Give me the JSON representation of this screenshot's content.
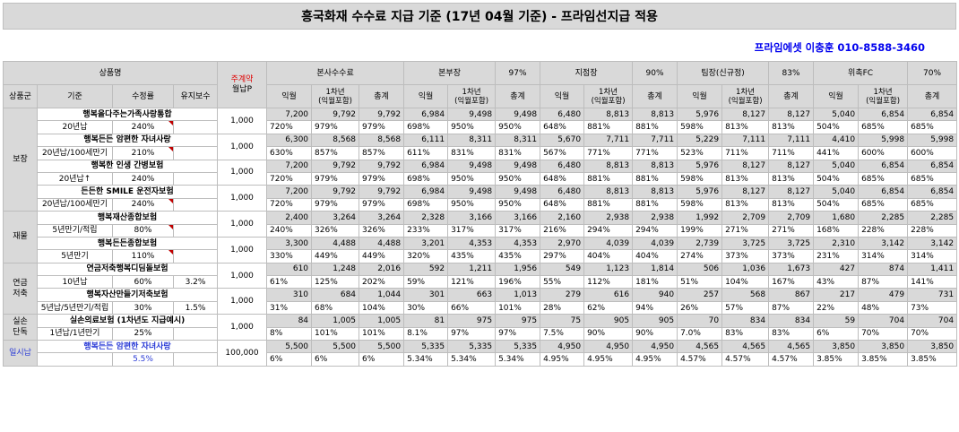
{
  "title": "흥국화재 수수료 지급 기준 (17년 04월 기준) - 프라임선지급 적용",
  "contact": "프라임에셋 이충훈 010-8588-3460",
  "header": {
    "product_name": "상품명",
    "monthly_premium_top": "주계약",
    "monthly_premium_bottom": "월납P",
    "group_col": "상품군",
    "basis_col": "기준",
    "rate_col": "수정률",
    "maint_col": "유지보수",
    "groups": [
      {
        "label": "본사수수료",
        "pct": ""
      },
      {
        "label": "본부장",
        "pct": "97%"
      },
      {
        "label": "지점장",
        "pct": "90%"
      },
      {
        "label": "팀장(신규정)",
        "pct": "83%"
      },
      {
        "label": "위촉FC",
        "pct": "70%"
      }
    ],
    "sub1": "익월",
    "sub2a": "1차년",
    "sub2b": "(익월포함)",
    "sub3": "총계"
  },
  "categories": [
    "보장",
    "재물",
    "연금\n저축",
    "실손\n단독",
    "일시납"
  ],
  "products": [
    {
      "cat": 0,
      "name": "행복을다주는가족사랑통합",
      "basis": "20년납",
      "rate": "240%",
      "maint": "",
      "premium": "1,000",
      "amounts": [
        "7,200",
        "9,792",
        "9,792",
        "6,984",
        "9,498",
        "9,498",
        "6,480",
        "8,813",
        "8,813",
        "5,976",
        "8,127",
        "8,127",
        "5,040",
        "6,854",
        "6,854"
      ],
      "pcts": [
        "720%",
        "979%",
        "979%",
        "698%",
        "950%",
        "950%",
        "648%",
        "881%",
        "881%",
        "598%",
        "813%",
        "813%",
        "504%",
        "685%",
        "685%"
      ]
    },
    {
      "cat": 0,
      "name": "행복든든 암편한 자녀사랑",
      "basis": "20년납/100세만기",
      "rate": "210%",
      "maint": "",
      "premium": "1,000",
      "amounts": [
        "6,300",
        "8,568",
        "8,568",
        "6,111",
        "8,311",
        "8,311",
        "5,670",
        "7,711",
        "7,711",
        "5,229",
        "7,111",
        "7,111",
        "4,410",
        "5,998",
        "5,998"
      ],
      "pcts": [
        "630%",
        "857%",
        "857%",
        "611%",
        "831%",
        "831%",
        "567%",
        "771%",
        "771%",
        "523%",
        "711%",
        "711%",
        "441%",
        "600%",
        "600%"
      ]
    },
    {
      "cat": 0,
      "name": "행복한 인생 간병보험",
      "basis": "20년납↑",
      "rate": "240%",
      "maint": "",
      "premium": "1,000",
      "amounts": [
        "7,200",
        "9,792",
        "9,792",
        "6,984",
        "9,498",
        "9,498",
        "6,480",
        "8,813",
        "8,813",
        "5,976",
        "8,127",
        "8,127",
        "5,040",
        "6,854",
        "6,854"
      ],
      "pcts": [
        "720%",
        "979%",
        "979%",
        "698%",
        "950%",
        "950%",
        "648%",
        "881%",
        "881%",
        "598%",
        "813%",
        "813%",
        "504%",
        "685%",
        "685%"
      ]
    },
    {
      "cat": 0,
      "name": "든든한 SMILE 운전자보험",
      "basis": "20년납/100세만기",
      "rate": "240%",
      "maint": "",
      "premium": "1,000",
      "amounts": [
        "7,200",
        "9,792",
        "9,792",
        "6,984",
        "9,498",
        "9,498",
        "6,480",
        "8,813",
        "8,813",
        "5,976",
        "8,127",
        "8,127",
        "5,040",
        "6,854",
        "6,854"
      ],
      "pcts": [
        "720%",
        "979%",
        "979%",
        "698%",
        "950%",
        "950%",
        "648%",
        "881%",
        "881%",
        "598%",
        "813%",
        "813%",
        "504%",
        "685%",
        "685%"
      ]
    },
    {
      "cat": 1,
      "name": "행복재산종합보험",
      "basis": "5년만기/적립",
      "rate": "80%",
      "maint": "",
      "premium": "1,000",
      "amounts": [
        "2,400",
        "3,264",
        "3,264",
        "2,328",
        "3,166",
        "3,166",
        "2,160",
        "2,938",
        "2,938",
        "1,992",
        "2,709",
        "2,709",
        "1,680",
        "2,285",
        "2,285"
      ],
      "pcts": [
        "240%",
        "326%",
        "326%",
        "233%",
        "317%",
        "317%",
        "216%",
        "294%",
        "294%",
        "199%",
        "271%",
        "271%",
        "168%",
        "228%",
        "228%"
      ]
    },
    {
      "cat": 1,
      "name": "행복든든종합보험",
      "basis": "5년만기",
      "rate": "110%",
      "maint": "",
      "premium": "1,000",
      "amounts": [
        "3,300",
        "4,488",
        "4,488",
        "3,201",
        "4,353",
        "4,353",
        "2,970",
        "4,039",
        "4,039",
        "2,739",
        "3,725",
        "3,725",
        "2,310",
        "3,142",
        "3,142"
      ],
      "pcts": [
        "330%",
        "449%",
        "449%",
        "320%",
        "435%",
        "435%",
        "297%",
        "404%",
        "404%",
        "274%",
        "373%",
        "373%",
        "231%",
        "314%",
        "314%"
      ]
    },
    {
      "cat": 2,
      "name": "연금저축행복디딤돌보험",
      "basis": "10년납",
      "rate": "60%",
      "maint": "3.2%",
      "premium": "1,000",
      "amounts": [
        "610",
        "1,248",
        "2,016",
        "592",
        "1,211",
        "1,956",
        "549",
        "1,123",
        "1,814",
        "506",
        "1,036",
        "1,673",
        "427",
        "874",
        "1,411"
      ],
      "pcts": [
        "61%",
        "125%",
        "202%",
        "59%",
        "121%",
        "196%",
        "55%",
        "112%",
        "181%",
        "51%",
        "104%",
        "167%",
        "43%",
        "87%",
        "141%"
      ]
    },
    {
      "cat": 2,
      "name": "행복자산만들기저축보험",
      "basis": "5년납/5년만기/적립",
      "rate": "30%",
      "maint": "1.5%",
      "premium": "1,000",
      "amounts": [
        "310",
        "684",
        "1,044",
        "301",
        "663",
        "1,013",
        "279",
        "616",
        "940",
        "257",
        "568",
        "867",
        "217",
        "479",
        "731"
      ],
      "pcts": [
        "31%",
        "68%",
        "104%",
        "30%",
        "66%",
        "101%",
        "28%",
        "62%",
        "94%",
        "26%",
        "57%",
        "87%",
        "22%",
        "48%",
        "73%"
      ]
    },
    {
      "cat": 3,
      "name": "실손의료보험 (1차년도 지급예시)",
      "basis": "1년납/1년만기",
      "rate": "25%",
      "maint": "",
      "premium": "1,000",
      "amounts": [
        "84",
        "1,005",
        "1,005",
        "81",
        "975",
        "975",
        "75",
        "905",
        "905",
        "70",
        "834",
        "834",
        "59",
        "704",
        "704"
      ],
      "pcts": [
        "8%",
        "101%",
        "101%",
        "8.1%",
        "97%",
        "97%",
        "7.5%",
        "90%",
        "90%",
        "7.0%",
        "83%",
        "83%",
        "6%",
        "70%",
        "70%"
      ]
    },
    {
      "cat": 4,
      "name": "행복든든 암편한 자녀사랑",
      "basis": "",
      "rate": "5.5%",
      "maint": "",
      "premium": "100,000",
      "amounts": [
        "5,500",
        "5,500",
        "5,500",
        "5,335",
        "5,335",
        "5,335",
        "4,950",
        "4,950",
        "4,950",
        "4,565",
        "4,565",
        "4,565",
        "3,850",
        "3,850",
        "3,850"
      ],
      "pcts": [
        "6%",
        "6%",
        "6%",
        "5.34%",
        "5.34%",
        "5.34%",
        "4.95%",
        "4.95%",
        "4.95%",
        "4.57%",
        "4.57%",
        "4.57%",
        "3.85%",
        "3.85%",
        "3.85%"
      ]
    }
  ]
}
